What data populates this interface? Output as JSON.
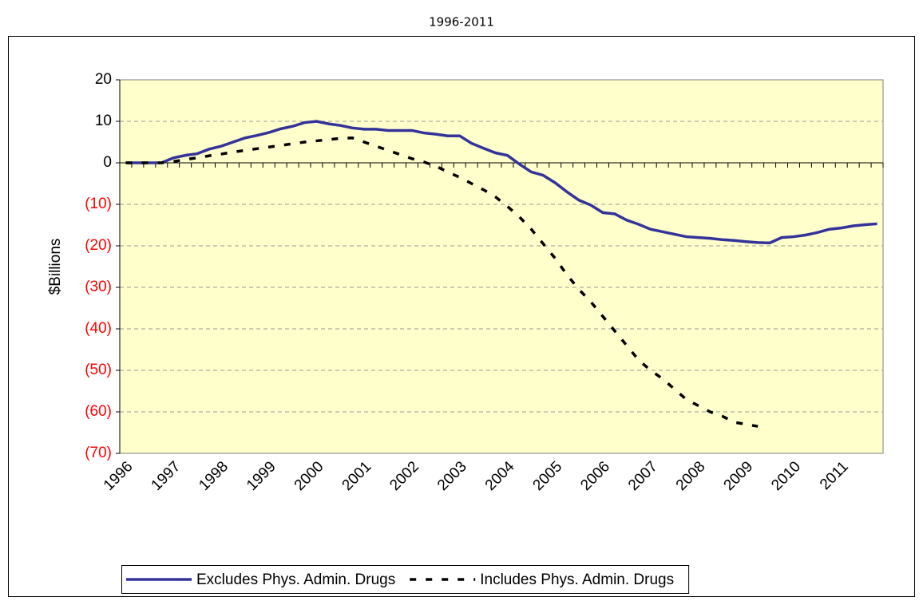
{
  "chart_data": {
    "type": "line",
    "title": "1996-2011",
    "ylabel": "$Billions",
    "categories": [
      "1996",
      null,
      null,
      null,
      "1997",
      null,
      null,
      null,
      "1998",
      null,
      null,
      null,
      "1999",
      null,
      null,
      null,
      "2000",
      null,
      null,
      null,
      "2001",
      null,
      null,
      null,
      "2002",
      null,
      null,
      null,
      "2003",
      null,
      null,
      null,
      "2004",
      null,
      null,
      null,
      "2005",
      null,
      null,
      null,
      "2006",
      null,
      null,
      null,
      "2007",
      null,
      null,
      null,
      "2008",
      null,
      null,
      null,
      "2009",
      null,
      null,
      null,
      "2010",
      null,
      null,
      null,
      "2011",
      null,
      null,
      null
    ],
    "series": [
      {
        "name": "Excludes Phys. Admin. Drugs",
        "color": "#333399",
        "style": "solid",
        "values": [
          0,
          0,
          0,
          0,
          1.2,
          1.8,
          2.2,
          3.3,
          4,
          5,
          6,
          6.6,
          7.3,
          8.2,
          8.8,
          9.7,
          10,
          9.4,
          9,
          8.4,
          8.1,
          8.1,
          7.8,
          7.8,
          7.8,
          7.2,
          6.9,
          6.5,
          6.5,
          4.7,
          3.5,
          2.4,
          1.8,
          -0.3,
          -2.2,
          -3,
          -4.8,
          -7,
          -9,
          -10.2,
          -12,
          -12.3,
          -13.8,
          -14.8,
          -16,
          -16.6,
          -17.2,
          -17.8,
          -18,
          -18.2,
          -18.5,
          -18.7,
          -19,
          -19.2,
          -19.3,
          -18,
          -17.8,
          -17.4,
          -16.8,
          -16,
          -15.7,
          -15.2,
          -14.9,
          -14.7
        ]
      },
      {
        "name": "Includes Phys. Admin. Drugs",
        "color": "#000000",
        "style": "dashed",
        "values": [
          0,
          0,
          0,
          0,
          0.3,
          0.8,
          1.2,
          1.7,
          2.1,
          2.6,
          3,
          3.4,
          3.8,
          4.2,
          4.6,
          5,
          5.3,
          5.6,
          5.9,
          6,
          5,
          4,
          3,
          2,
          1,
          0.2,
          -0.8,
          -2.2,
          -3.5,
          -5,
          -6.5,
          -8.2,
          -10.5,
          -13,
          -16,
          -19.5,
          -23,
          -27,
          -30.5,
          -33.5,
          -37,
          -40.5,
          -44,
          -47.5,
          -50,
          -52,
          -54.5,
          -57,
          -58.5,
          -60,
          -61,
          -62.5,
          -63,
          -63.5,
          null,
          null,
          null,
          null,
          null,
          null,
          null,
          null,
          null,
          null
        ]
      }
    ],
    "ylim": [
      -70,
      20
    ],
    "yticks": [
      {
        "value": -70,
        "label": "(70)"
      },
      {
        "value": -60,
        "label": "(60)"
      },
      {
        "value": -50,
        "label": "(50)"
      },
      {
        "value": -40,
        "label": "(40)"
      },
      {
        "value": -30,
        "label": "(30)"
      },
      {
        "value": -20,
        "label": "(20)"
      },
      {
        "value": -10,
        "label": "(10)"
      },
      0,
      10,
      20
    ],
    "negative_tick_color": "#ff0000",
    "plot_background": "#ffffcc",
    "grid": true,
    "legend": "bottom"
  }
}
